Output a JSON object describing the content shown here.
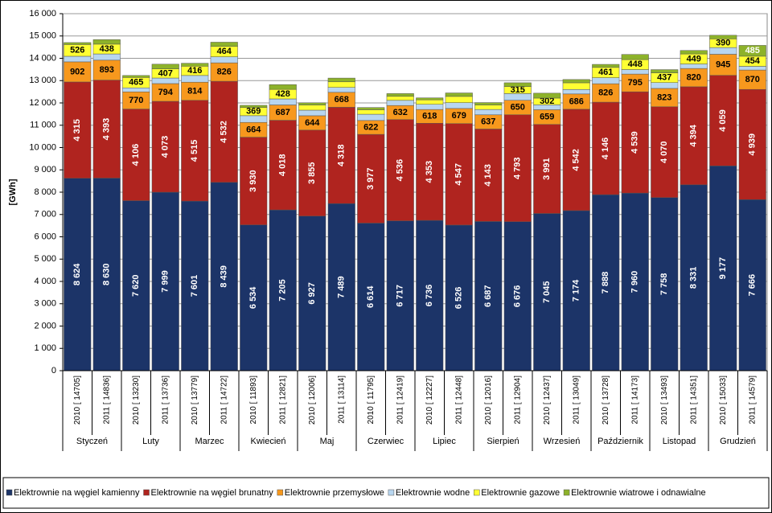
{
  "chart_data": {
    "type": "stacked-bar",
    "y_label": "[GWh]",
    "categories": [
      "2010 [ 14705]",
      "2011 [ 14836]",
      "2010 [ 13230]",
      "2011 [ 13736]",
      "2010 [ 13779]",
      "2011 [ 14722]",
      "2010 [ 11893]",
      "2011 [ 12821]",
      "2010 [ 12006]",
      "2011 [ 13114]",
      "2010 [ 11795]",
      "2011 [ 12419]",
      "2010 [ 12227]",
      "2011 [ 12448]",
      "2010 [ 12016]",
      "2011 [ 12904]",
      "2010 [ 12437]",
      "2011 [ 13049]",
      "2010 [ 13728]",
      "2011 [ 14173]",
      "2010 [ 13493]",
      "2011 [ 14351]",
      "2010 [ 15033]",
      "2011 [ 14579]"
    ],
    "groups": [
      "Styczeń",
      "Luty",
      "Marzec",
      "Kwiecień",
      "Maj",
      "Czerwiec",
      "Lipiec",
      "Sierpień",
      "Wrzesień",
      "Październik",
      "Listopad",
      "Grudzień"
    ],
    "series": [
      {
        "name": "Elektrownie na węgiel kamienny",
        "color": "#1c3468",
        "values": [
          8624,
          8630,
          7620,
          7999,
          7601,
          8439,
          6534,
          7205,
          6927,
          7489,
          6614,
          6717,
          6736,
          6526,
          6687,
          6676,
          7045,
          7174,
          7888,
          7960,
          7758,
          8331,
          9177,
          7666
        ],
        "value_labels": [
          "8 624",
          "8 630",
          "7 620",
          "7 999",
          "7 601",
          "8 439",
          "6 534",
          "7 205",
          "6 927",
          "7 489",
          "6 614",
          "6 717",
          "6 736",
          "6 526",
          "6 687",
          "6 676",
          "7 045",
          "7 174",
          "7 888",
          "7 960",
          "7 758",
          "8 331",
          "9 177",
          "7 666"
        ]
      },
      {
        "name": "Elektrownie na węgiel brunatny",
        "color": "#b0241f",
        "values": [
          4315,
          4393,
          4106,
          4073,
          4515,
          4532,
          3930,
          4018,
          3855,
          4318,
          3977,
          4536,
          4353,
          4547,
          4143,
          4793,
          3991,
          4542,
          4146,
          4539,
          4070,
          4394,
          4059,
          4939
        ],
        "value_labels": [
          "4 315",
          "4 393",
          "4 106",
          "4 073",
          "4 515",
          "4 532",
          "3 930",
          "4 018",
          "3 855",
          "4 318",
          "3 977",
          "4 536",
          "4 353",
          "4 547",
          "4 143",
          "4 793",
          "3 991",
          "4 542",
          "4 146",
          "4 539",
          "4 070",
          "4 394",
          "4 059",
          "4 939"
        ]
      },
      {
        "name": "Elektrownie przemysłowe",
        "color": "#f7981d",
        "values": [
          902,
          893,
          770,
          794,
          814,
          826,
          664,
          687,
          644,
          668,
          622,
          632,
          618,
          679,
          637,
          650,
          659,
          686,
          826,
          795,
          823,
          820,
          945,
          870
        ]
      },
      {
        "name": "Elektrownie wodne",
        "color": "#b8d6f0",
        "values": [
          250,
          280,
          180,
          250,
          300,
          270,
          300,
          270,
          250,
          220,
          280,
          230,
          230,
          260,
          240,
          300,
          220,
          200,
          270,
          200,
          260,
          200,
          300,
          165
        ]
      },
      {
        "name": "Elektrownie gazowe",
        "color": "#ffff33",
        "values": [
          526,
          438,
          465,
          407,
          416,
          464,
          369,
          428,
          230,
          250,
          200,
          180,
          200,
          280,
          200,
          315,
          302,
          300,
          461,
          448,
          437,
          449,
          390,
          454
        ],
        "value_labels": [
          "526",
          "438",
          "465",
          "407",
          "416",
          "464",
          "369",
          "428",
          null,
          null,
          null,
          null,
          null,
          null,
          null,
          "315",
          "302",
          null,
          "461",
          "448",
          "437",
          "449",
          "390",
          "454"
        ]
      },
      {
        "name": "Elektrownie wiatrowe i odnawialne",
        "color": "#8db22a",
        "values": [
          88,
          202,
          89,
          213,
          133,
          191,
          96,
          213,
          100,
          169,
          102,
          124,
          90,
          156,
          109,
          170,
          220,
          147,
          137,
          231,
          145,
          157,
          162,
          485
        ],
        "value_labels": [
          null,
          null,
          null,
          null,
          null,
          null,
          null,
          null,
          null,
          null,
          null,
          null,
          null,
          null,
          null,
          null,
          null,
          null,
          null,
          null,
          null,
          null,
          null,
          "485"
        ]
      }
    ],
    "ylim": [
      0,
      16000
    ],
    "yticks": [
      0,
      {
        "value": 1000,
        "label": "1 000"
      },
      {
        "value": 2000,
        "label": "2 000"
      },
      {
        "value": 3000,
        "label": "3 000"
      },
      {
        "value": 4000,
        "label": "4 000"
      },
      {
        "value": 5000,
        "label": "5 000"
      },
      {
        "value": 6000,
        "label": "6 000"
      },
      {
        "value": 7000,
        "label": "7 000"
      },
      {
        "value": 8000,
        "label": "8 000"
      },
      {
        "value": 9000,
        "label": "9 000"
      },
      {
        "value": 10000,
        "label": "10 000"
      },
      {
        "value": 11000,
        "label": "11 000"
      },
      {
        "value": 12000,
        "label": "12 000"
      },
      {
        "value": 13000,
        "label": "13 000"
      },
      {
        "value": 14000,
        "label": "14 000"
      },
      {
        "value": 15000,
        "label": "15 000"
      },
      {
        "value": 16000,
        "label": "16 000"
      }
    ],
    "grid": true,
    "legend": "bottom"
  }
}
